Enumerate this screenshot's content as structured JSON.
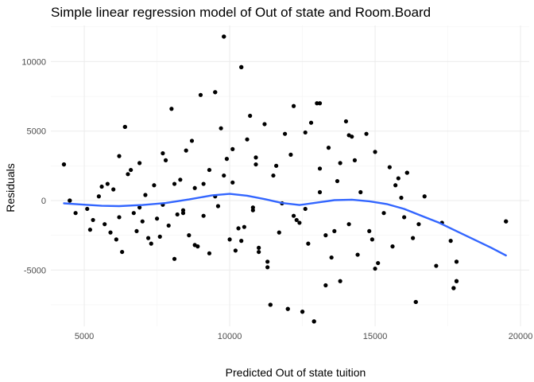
{
  "chart_data": {
    "type": "scatter",
    "title": "Simple linear regression model of Out of state and Room.Board",
    "xlabel": "Predicted Out of state tuition",
    "ylabel": "Residuals",
    "xlim": [
      3850,
      20300
    ],
    "ylim": [
      -9050,
      12600
    ],
    "x_ticks": [
      5000,
      10000,
      15000,
      20000
    ],
    "x_tick_labels": [
      "5000",
      "10000",
      "15000",
      "20000"
    ],
    "y_ticks": [
      -5000,
      0,
      5000,
      10000
    ],
    "y_tick_labels": [
      "-5000",
      "0",
      "5000",
      "10000"
    ],
    "grid": true,
    "legend": "none",
    "point_color": "#000000",
    "smooth_color": "#3366ff",
    "smooth_line": {
      "x": [
        4300,
        5000,
        5600,
        6200,
        7000,
        7800,
        8600,
        9400,
        10000,
        10600,
        11200,
        11800,
        12400,
        13000,
        13600,
        14200,
        14800,
        15400,
        16000,
        16600,
        17200,
        17800,
        18400,
        19000,
        19500
      ],
      "y": [
        -200,
        -300,
        -380,
        -400,
        -320,
        -180,
        80,
        380,
        480,
        350,
        100,
        -180,
        -320,
        -150,
        30,
        60,
        -50,
        -250,
        -600,
        -1100,
        -1600,
        -2200,
        -2800,
        -3400,
        -3950
      ]
    },
    "highlighted_points": {
      "x": [
        4300,
        4500,
        6400,
        9500,
        9800,
        10400,
        11400,
        12000,
        12500,
        12900,
        13100,
        16100,
        16400,
        17700,
        17800,
        17800,
        19500
      ],
      "y": [
        2600,
        0,
        5300,
        7800,
        11800,
        9600,
        -7500,
        -7800,
        -8000,
        -8700,
        7000,
        2000,
        -7300,
        -6300,
        -5800,
        -4400,
        -1500
      ]
    },
    "points": {
      "x": [
        4300,
        4500,
        4700,
        5100,
        5300,
        5500,
        5700,
        5800,
        5900,
        6000,
        6100,
        6200,
        6300,
        6400,
        6500,
        6700,
        6800,
        6900,
        7000,
        7100,
        7300,
        7400,
        7600,
        7700,
        7800,
        7900,
        8000,
        8100,
        8300,
        8400,
        8500,
        8600,
        8800,
        8900,
        9000,
        9100,
        9300,
        9500,
        9600,
        9800,
        9900,
        10000,
        10100,
        10200,
        10400,
        10500,
        10600,
        10800,
        10900,
        11000,
        11200,
        11300,
        11400,
        11500,
        11700,
        11800,
        12000,
        12100,
        12300,
        12500,
        12600,
        12700,
        12900,
        13000,
        13100,
        13300,
        13400,
        13500,
        13700,
        13800,
        14000,
        14100,
        14300,
        14400,
        14500,
        14700,
        14800,
        15000,
        15100,
        15300,
        15500,
        15600,
        15800,
        16000,
        16100,
        16300,
        16400,
        16700,
        17100,
        17300,
        17600,
        17700,
        17800,
        17800,
        19500,
        5200,
        5600,
        6200,
        6600,
        7200,
        7700,
        8200,
        8700,
        9300,
        9700,
        10300,
        10700,
        11300,
        11900,
        12400,
        12800,
        13600,
        14200,
        14900,
        15700,
        16500,
        6900,
        7500,
        8100,
        8800,
        9500,
        10100,
        10800,
        11600,
        12200,
        13300,
        14100,
        15000,
        15900,
        9800,
        10400,
        8400,
        11000,
        12200,
        13100,
        9100,
        10900,
        12600,
        13800
      ],
      "y": [
        2600,
        0,
        -900,
        -600,
        -1400,
        300,
        -1700,
        1200,
        -2300,
        800,
        -2800,
        3200,
        -3700,
        5300,
        1900,
        -900,
        -2200,
        2700,
        -1500,
        400,
        -3100,
        1100,
        -2600,
        -300,
        2900,
        -1800,
        6600,
        -4200,
        1500,
        -700,
        3600,
        -2500,
        900,
        -3300,
        7600,
        -1100,
        2200,
        7800,
        -400,
        11800,
        3000,
        -2800,
        1300,
        -3600,
        9600,
        -1900,
        4400,
        -500,
        2600,
        -3400,
        5500,
        -4800,
        -7500,
        1800,
        -2300,
        -200,
        -7800,
        3300,
        -1400,
        -8000,
        4900,
        -3100,
        -8700,
        7000,
        600,
        -2500,
        3800,
        -4100,
        1400,
        -5800,
        5700,
        -1700,
        2900,
        -3900,
        600,
        4800,
        -2200,
        3500,
        -4500,
        -900,
        2400,
        -3300,
        1600,
        -1200,
        2000,
        -2700,
        -7300,
        300,
        -4700,
        -1600,
        -2900,
        -6300,
        -5800,
        -4400,
        -1500,
        -2100,
        1000,
        -1200,
        2200,
        -2700,
        3400,
        -1000,
        4300,
        -3800,
        5200,
        -2000,
        6100,
        -4400,
        4800,
        -1600,
        5600,
        -2200,
        4600,
        -2800,
        1100,
        -1700,
        -500,
        -1300,
        1200,
        -3200,
        300,
        3700,
        -700,
        2500,
        -1100,
        -6100,
        4700,
        -4900,
        200,
        1800,
        -2900,
        -900,
        -3700,
        6800,
        2300,
        1200,
        3100,
        -600,
        2700
      ]
    }
  }
}
